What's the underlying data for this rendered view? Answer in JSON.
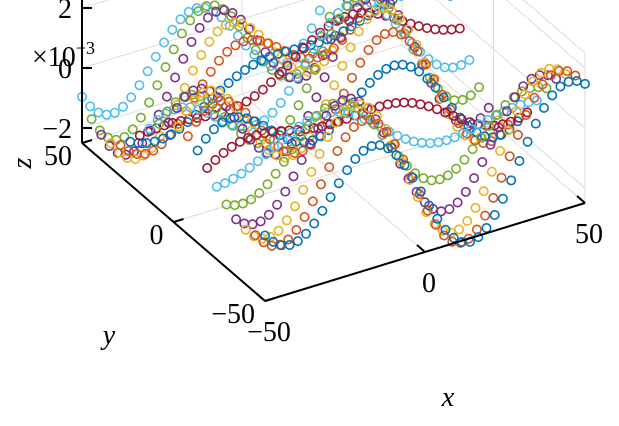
{
  "chart_data": {
    "type": "scatter",
    "title": "",
    "xlabel": "x",
    "ylabel": "y",
    "zlabel": "z",
    "z_scale_label": "×10",
    "z_scale_exponent": "−3",
    "xlim": [
      -50,
      50
    ],
    "ylim": [
      -50,
      50
    ],
    "zlim": [
      -2.5,
      2.5
    ],
    "z_multiplier": 0.001,
    "x_ticks": [
      -50,
      0,
      50
    ],
    "x_tick_labels": [
      "−50",
      "0",
      "50"
    ],
    "y_ticks": [
      -50,
      0,
      50
    ],
    "y_tick_labels": [
      "−50",
      "0",
      "50"
    ],
    "z_ticks": [
      -2,
      0,
      2
    ],
    "z_tick_labels": [
      "−2",
      "0",
      "2"
    ],
    "grid": true,
    "marker": "open-circle",
    "n_rows": 20,
    "points_per_row": 40,
    "row_colors": [
      "#0072BD",
      "#D95319",
      "#EDB120",
      "#7E2F8E",
      "#77AC30",
      "#4DBEEE",
      "#A2142F"
    ],
    "surface_description": "z = 0.0021·sin(0.11·x)·cos(0.075·y) + 0.0009·cos(0.05·(x−y)), sampled on a 40×20 grid"
  }
}
